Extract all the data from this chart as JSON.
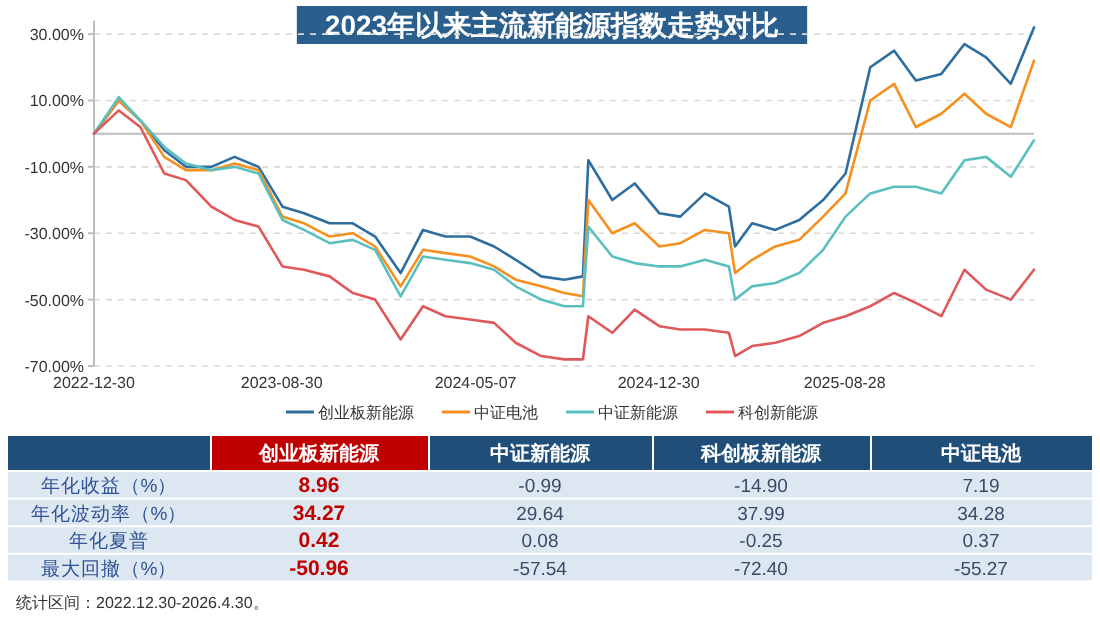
{
  "chart_data": [
    {
      "type": "line",
      "title": "2023年以来主流新能源指数走势对比",
      "x": [
        "2022-12-30",
        "2023-01-31",
        "2023-02-28",
        "2023-03-31",
        "2023-04-28",
        "2023-05-31",
        "2023-06-30",
        "2023-07-31",
        "2023-08-31",
        "2023-09-28",
        "2023-10-31",
        "2023-11-30",
        "2023-12-29",
        "2024-01-31",
        "2024-02-29",
        "2024-03-29",
        "2024-04-30",
        "2024-05-31",
        "2024-06-28",
        "2024-07-31",
        "2024-08-30",
        "2024-09-23",
        "2024-09-30",
        "2024-10-31",
        "2024-11-29",
        "2024-12-31",
        "2025-01-27",
        "2025-02-28",
        "2025-03-31",
        "2025-04-08",
        "2025-04-30",
        "2025-05-30",
        "2025-06-30",
        "2025-07-31",
        "2025-08-29",
        "2025-09-30",
        "2025-10-31",
        "2025-11-28",
        "2025-12-31",
        "2026-01-30",
        "2026-02-27",
        "2026-03-31",
        "2026-04-30"
      ],
      "series": [
        {
          "name": "创业板新能源",
          "color": "#2e6e9e",
          "values": [
            0,
            10,
            4,
            -5,
            -10,
            -10,
            -7,
            -10,
            -22,
            -24,
            -27,
            -27,
            -31,
            -42,
            -29,
            -31,
            -31,
            -34,
            -38,
            -43,
            -44,
            -43,
            -8,
            -20,
            -15,
            -24,
            -25,
            -18,
            -22,
            -34,
            -27,
            -29,
            -26,
            -20,
            -12,
            20,
            25,
            16,
            18,
            27,
            23,
            15,
            32
          ]
        },
        {
          "name": "中证电池",
          "color": "#f5901e",
          "values": [
            0,
            10,
            4,
            -7,
            -11,
            -11,
            -9,
            -11,
            -25,
            -27,
            -31,
            -30,
            -34,
            -46,
            -35,
            -36,
            -37,
            -40,
            -44,
            -46,
            -48,
            -49,
            -20,
            -30,
            -27,
            -34,
            -33,
            -29,
            -30,
            -42,
            -38,
            -34,
            -32,
            -25,
            -18,
            10,
            15,
            2,
            6,
            12,
            6,
            2,
            22
          ]
        },
        {
          "name": "中证新能源",
          "color": "#5bbfbf",
          "values": [
            0,
            11,
            4,
            -4,
            -9,
            -11,
            -10,
            -12,
            -26,
            -29,
            -33,
            -32,
            -35,
            -49,
            -37,
            -38,
            -39,
            -41,
            -46,
            -50,
            -52,
            -52,
            -28,
            -37,
            -39,
            -40,
            -40,
            -38,
            -40,
            -50,
            -46,
            -45,
            -42,
            -35,
            -25,
            -18,
            -16,
            -16,
            -18,
            -8,
            -7,
            -13,
            -2
          ]
        },
        {
          "name": "科创新能源",
          "color": "#e0595a",
          "values": [
            0,
            7,
            2,
            -12,
            -14,
            -22,
            -26,
            -28,
            -40,
            -41,
            -43,
            -48,
            -50,
            -62,
            -52,
            -55,
            -56,
            -57,
            -63,
            -67,
            -68,
            -68,
            -55,
            -60,
            -53,
            -58,
            -59,
            -59,
            -60,
            -67,
            -64,
            -63,
            -61,
            -57,
            -55,
            -52,
            -48,
            -51,
            -55,
            -41,
            -47,
            -50,
            -41
          ]
        }
      ],
      "xlim": [
        "2022-12-30",
        "2026-04-30"
      ],
      "xticks": [
        "2022-12-30",
        "2023-08-30",
        "2024-05-07",
        "2024-12-30",
        "2025-08-28"
      ],
      "ylim": [
        -70,
        34
      ],
      "yticks": [
        {
          "value": -70,
          "label": "-70.00%"
        },
        {
          "value": -50,
          "label": "-50.00%"
        },
        {
          "value": -30,
          "label": "-30.00%"
        },
        {
          "value": -10,
          "label": "-10.00%"
        },
        {
          "value": 10,
          "label": "10.00%"
        },
        {
          "value": 30,
          "label": "30.00%"
        }
      ],
      "grid": "y",
      "legend": "bottom",
      "ref_lines": [
        {
          "axis": "y",
          "value": 0,
          "color": "#bfbfbf"
        }
      ]
    },
    {
      "type": "other",
      "categories": [
        "创业板新能源",
        "中证新能源",
        "科创板新能源",
        "中证电池"
      ],
      "colors": [
        "#c00000",
        "#1f4e79",
        "#1f4e79",
        "#1f4e79"
      ],
      "y_categories": [
        "年化收益（%）",
        "年化波动率（%）",
        "年化夏普",
        "最大回撤（%）"
      ],
      "cell_labels": [
        [
          "8.96",
          "-0.99",
          "-14.90",
          "7.19"
        ],
        [
          "34.27",
          "29.64",
          "37.99",
          "34.28"
        ],
        [
          "0.42",
          "0.08",
          "-0.25",
          "0.37"
        ],
        [
          "-50.96",
          "-57.54",
          "-72.40",
          "-55.27"
        ]
      ],
      "annotations": [
        "统计区间：2022.12.30-2026.4.30。"
      ]
    }
  ]
}
